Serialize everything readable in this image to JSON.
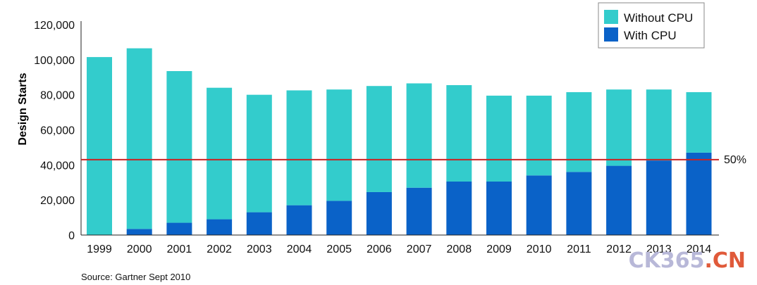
{
  "chart_data": {
    "type": "bar",
    "stacked": true,
    "categories": [
      "1999",
      "2000",
      "2001",
      "2002",
      "2003",
      "2004",
      "2005",
      "2006",
      "2007",
      "2008",
      "2009",
      "2010",
      "2011",
      "2012",
      "2013",
      "2014"
    ],
    "series": [
      {
        "name": "With CPU",
        "color": "#0a62c8",
        "values": [
          0,
          3500,
          7000,
          9000,
          13000,
          17000,
          19500,
          24500,
          27000,
          30500,
          30500,
          34000,
          36000,
          39500,
          42500,
          47000
        ]
      },
      {
        "name": "Without CPU",
        "color": "#33cccc",
        "values": [
          101500,
          103000,
          86500,
          75000,
          67000,
          65500,
          63500,
          60500,
          59500,
          55000,
          49000,
          45500,
          45500,
          43500,
          40500,
          34500
        ]
      }
    ],
    "ylabel": "Design Starts",
    "ylim": [
      0,
      120000
    ],
    "yticks": [
      "0",
      "20,000",
      "40,000",
      "60,000",
      "80,000",
      "100,000",
      "120,000"
    ],
    "ytick_values": [
      0,
      20000,
      40000,
      60000,
      80000,
      100000,
      120000
    ],
    "reference_line": {
      "value": 43000,
      "label": "50%",
      "color": "#cc2222"
    },
    "legend": {
      "position": "top-right",
      "entries": [
        "Without CPU",
        "With CPU"
      ]
    },
    "grid": false
  },
  "source": "Source: Gartner Sept 2010",
  "watermark": {
    "text": "CK365.CN",
    "color_main": "#b8b8d8",
    "color_accent": "#e05a3a"
  }
}
